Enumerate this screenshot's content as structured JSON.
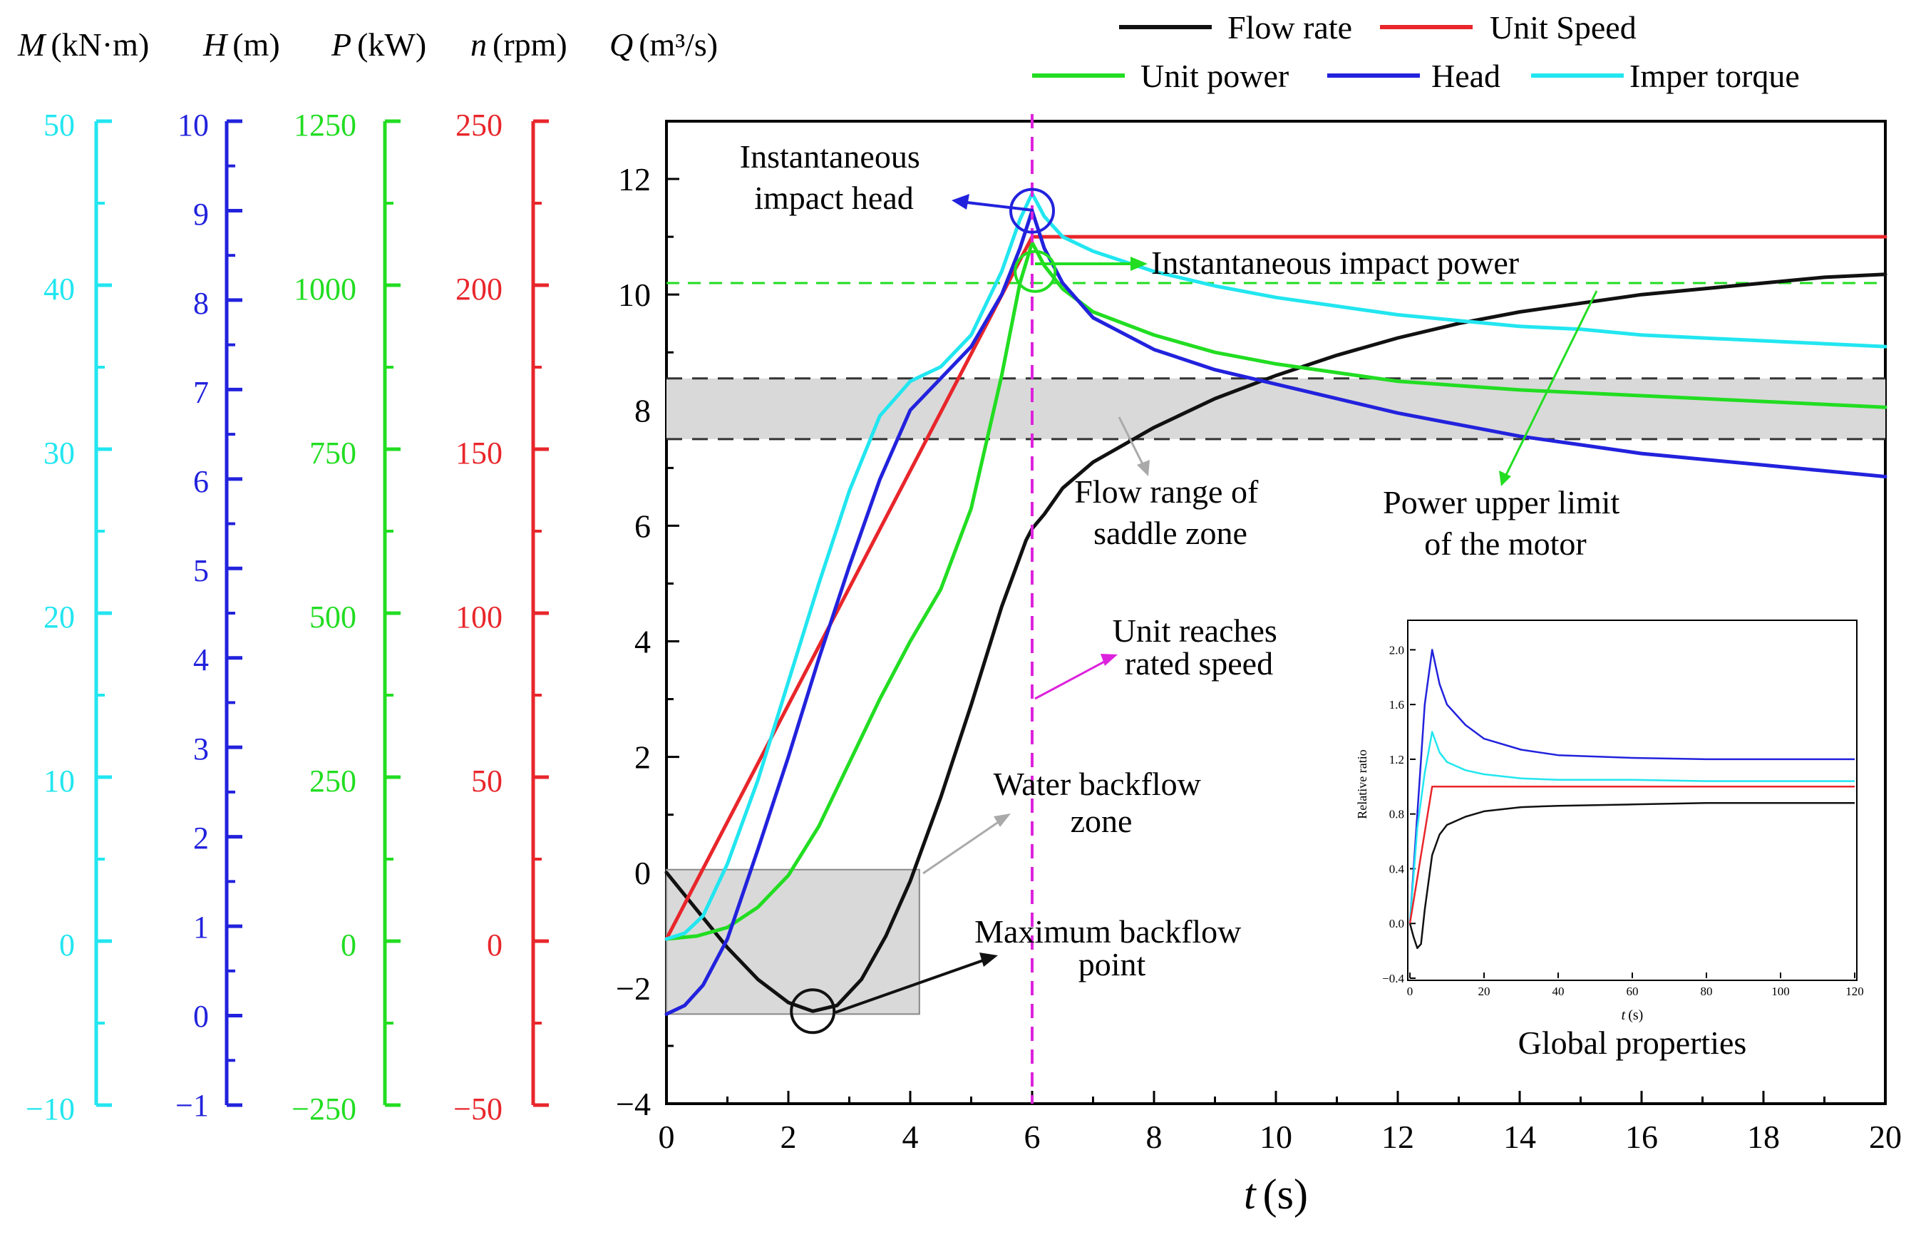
{
  "legend": [
    {
      "key": "flow",
      "label": "Flow rate"
    },
    {
      "key": "speed",
      "label": "Unit Speed"
    },
    {
      "key": "power",
      "label": "Unit power"
    },
    {
      "key": "head",
      "label": "Head"
    },
    {
      "key": "torque",
      "label": "Imper torque"
    }
  ],
  "colors": {
    "flow": "#111111",
    "speed": "#e8262b",
    "power": "#22dd22",
    "head": "#2222dd",
    "torque": "#22e6f0",
    "rated_line": "#dd22dd",
    "zone_fill": "#d9d9d9"
  },
  "axis_units": [
    {
      "key": "torque",
      "sym": "M",
      "unit": "(kN·m)"
    },
    {
      "key": "head",
      "sym": "H",
      "unit": "(m)"
    },
    {
      "key": "power",
      "sym": "P",
      "unit": "(kW)"
    },
    {
      "key": "speed",
      "sym": "n",
      "unit": "(rpm)"
    },
    {
      "key": "flow",
      "sym": "Q",
      "unit": "(m³/s)"
    }
  ],
  "annotations": {
    "impact_head": [
      "Instantaneous",
      "impact head"
    ],
    "impact_power": "Instantaneous impact power",
    "saddle": [
      "Flow range of",
      "saddle zone"
    ],
    "power_limit": [
      "Power upper limit",
      "of the motor"
    ],
    "rated_speed": [
      "Unit reaches",
      "rated speed"
    ],
    "backflow_zone": [
      "Water backflow",
      "zone"
    ],
    "max_backflow": [
      "Maximum backflow",
      "point"
    ],
    "inset_title": "Global properties"
  },
  "chart_data": [
    {
      "id": "main",
      "type": "line",
      "xlabel": "t (s)",
      "xlim": [
        0,
        20
      ],
      "ylim": [
        -4,
        13
      ],
      "x_ticks": [
        0,
        2,
        4,
        6,
        8,
        10,
        12,
        14,
        16,
        18,
        20
      ],
      "y_ticks": [
        -4,
        -2,
        0,
        2,
        4,
        6,
        8,
        10,
        12
      ],
      "reference_lines": {
        "rated_speed_time": 6,
        "power_limit_level": 10.2,
        "saddle_flow_range": [
          7.5,
          8.55
        ]
      },
      "backflow_zone": {
        "t": [
          0,
          4.15
        ],
        "q": [
          -2.45,
          0.05
        ]
      },
      "series": [
        {
          "key": "flow",
          "name": "Flow rate",
          "x": [
            0,
            0.5,
            1,
            1.5,
            2,
            2.4,
            2.8,
            3.2,
            3.6,
            4,
            4.5,
            5,
            5.5,
            5.9,
            6,
            6.2,
            6.5,
            7,
            7.5,
            8,
            9,
            10,
            11,
            12,
            13,
            14,
            15,
            16,
            17,
            18,
            19,
            20
          ],
          "y": [
            0,
            -0.65,
            -1.3,
            -1.85,
            -2.25,
            -2.4,
            -2.3,
            -1.85,
            -1.1,
            -0.15,
            1.3,
            2.9,
            4.6,
            5.75,
            5.95,
            6.2,
            6.65,
            7.1,
            7.4,
            7.7,
            8.2,
            8.6,
            8.95,
            9.25,
            9.5,
            9.7,
            9.85,
            10,
            10.1,
            10.2,
            10.3,
            10.35
          ]
        },
        {
          "key": "speed",
          "name": "Unit Speed",
          "x": [
            0,
            6,
            6.5,
            20
          ],
          "y": [
            -1.15,
            11,
            11,
            11
          ]
        },
        {
          "key": "power",
          "name": "Unit power",
          "x": [
            0,
            0.5,
            1,
            1.5,
            2,
            2.5,
            3,
            3.5,
            4,
            4.5,
            5,
            5.5,
            5.8,
            6,
            6.2,
            6.5,
            7,
            8,
            9,
            10,
            11,
            12,
            14,
            16,
            18,
            20
          ],
          "y": [
            -1.15,
            -1.1,
            -0.95,
            -0.6,
            -0.05,
            0.8,
            1.9,
            3,
            4,
            4.9,
            6.3,
            8.6,
            10.2,
            10.9,
            10.5,
            10.1,
            9.7,
            9.3,
            9.0,
            8.8,
            8.65,
            8.5,
            8.35,
            8.25,
            8.15,
            8.05
          ]
        },
        {
          "key": "head",
          "name": "Head",
          "x": [
            0,
            0.3,
            0.6,
            1,
            1.5,
            2,
            2.5,
            3,
            3.5,
            4,
            4.5,
            5,
            5.5,
            5.8,
            6,
            6.2,
            6.5,
            7,
            8,
            9,
            10,
            11,
            12,
            13,
            14,
            15,
            16,
            17,
            18,
            19,
            20
          ],
          "y": [
            -2.45,
            -2.3,
            -1.95,
            -1.15,
            0.4,
            2,
            3.7,
            5.3,
            6.8,
            8,
            8.55,
            9.1,
            10,
            10.8,
            11.45,
            10.8,
            10.2,
            9.6,
            9.05,
            8.7,
            8.45,
            8.2,
            7.95,
            7.75,
            7.55,
            7.4,
            7.25,
            7.15,
            7.05,
            6.95,
            6.85
          ]
        },
        {
          "key": "torque",
          "name": "Imper torque",
          "x": [
            0,
            0.3,
            0.6,
            1,
            1.5,
            2,
            2.5,
            3,
            3.5,
            4,
            4.5,
            5,
            5.5,
            5.8,
            6,
            6.2,
            6.5,
            7,
            8,
            9,
            10,
            11,
            12,
            13,
            14,
            15,
            16,
            17,
            18,
            19,
            20
          ],
          "y": [
            -1.15,
            -1.05,
            -0.75,
            0.15,
            1.6,
            3.3,
            5,
            6.6,
            7.9,
            8.5,
            8.75,
            9.3,
            10.4,
            11.3,
            11.75,
            11.35,
            11,
            10.75,
            10.4,
            10.15,
            9.95,
            9.8,
            9.65,
            9.55,
            9.45,
            9.4,
            9.3,
            9.25,
            9.2,
            9.15,
            9.1
          ]
        }
      ]
    },
    {
      "id": "global_inset",
      "type": "line",
      "title": "Global properties",
      "xlabel": "t (s)",
      "ylabel": "Relative ratio",
      "xlim": [
        0,
        120
      ],
      "ylim": [
        -0.4,
        2.2
      ],
      "x_ticks": [
        0,
        20,
        40,
        60,
        80,
        100,
        120
      ],
      "y_ticks": [
        -0.4,
        0.0,
        0.4,
        0.8,
        1.2,
        1.6,
        2.0
      ],
      "series": [
        {
          "key": "head",
          "name": "Head",
          "x": [
            0,
            2,
            4,
            6,
            8,
            10,
            15,
            20,
            30,
            40,
            60,
            80,
            100,
            120
          ],
          "y": [
            0,
            0.8,
            1.6,
            2.0,
            1.75,
            1.6,
            1.45,
            1.35,
            1.27,
            1.23,
            1.21,
            1.2,
            1.2,
            1.2
          ]
        },
        {
          "key": "torque",
          "name": "Imper torque",
          "x": [
            0,
            2,
            4,
            6,
            8,
            10,
            15,
            20,
            30,
            40,
            60,
            80,
            100,
            120
          ],
          "y": [
            0,
            0.7,
            1.1,
            1.4,
            1.25,
            1.18,
            1.12,
            1.09,
            1.06,
            1.05,
            1.05,
            1.04,
            1.04,
            1.04
          ]
        },
        {
          "key": "speed",
          "name": "Unit Speed",
          "x": [
            0,
            6,
            8,
            120
          ],
          "y": [
            0,
            1.0,
            1.0,
            1.0
          ]
        },
        {
          "key": "flow",
          "name": "Flow rate",
          "x": [
            0,
            1,
            2,
            3,
            4,
            6,
            8,
            10,
            15,
            20,
            30,
            40,
            60,
            80,
            100,
            120
          ],
          "y": [
            0,
            -0.1,
            -0.18,
            -0.15,
            0.1,
            0.5,
            0.65,
            0.72,
            0.78,
            0.82,
            0.85,
            0.86,
            0.87,
            0.88,
            0.88,
            0.88
          ]
        }
      ]
    }
  ],
  "side_axes": [
    {
      "key": "torque",
      "labels": [
        "50",
        "40",
        "30",
        "20",
        "10",
        "0",
        "−10"
      ]
    },
    {
      "key": "head",
      "labels": [
        "10",
        "9",
        "8",
        "7",
        "6",
        "5",
        "4",
        "3",
        "2",
        "1",
        "0",
        "−1"
      ]
    },
    {
      "key": "power",
      "labels": [
        "1250",
        "1000",
        "750",
        "500",
        "250",
        "0",
        "−250"
      ]
    },
    {
      "key": "speed",
      "labels": [
        "250",
        "200",
        "150",
        "100",
        "50",
        "0",
        "−50"
      ]
    }
  ]
}
